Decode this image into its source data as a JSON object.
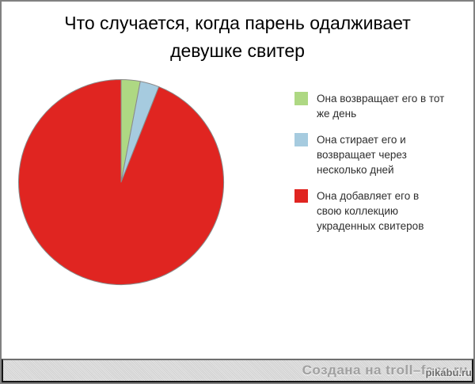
{
  "header": {
    "title_display": "Что случается, когда парень одалживает\nдевушке свитер"
  },
  "chart_data": {
    "type": "pie",
    "title": "Что случается, когда парень одалживает девушке свитер",
    "start_angle_deg": 0,
    "direction": "clockwise-from-top",
    "legend_position": "right",
    "outline_color": "#8a8a8a",
    "slices": [
      {
        "label": "Она возвращает его в тот же день",
        "label_display": "Она возвращает его в тот\nже день",
        "value": 3,
        "color": "#aed883"
      },
      {
        "label": "Она стирает его и возвращает через несколько дней",
        "label_display": "Она стирает его и\nвозвращает через\nнесколько дней",
        "value": 3,
        "color": "#a6cbdf"
      },
      {
        "label": "Она добавляет его в свою коллекцию украденных свитеров",
        "label_display": "Она добавляет его в\nсвою коллекцию\nукраденных свитеров",
        "value": 94,
        "color": "#e02521"
      }
    ]
  },
  "footer": {
    "credit": "Создана на troll–face.ru",
    "watermark": "pikabu.ru"
  },
  "colors": {
    "background": "#ffffff",
    "frame_border": "#818181",
    "footer_bg": "#d8d8d8",
    "title_text": "#000000",
    "legend_text": "#2e2e2e",
    "credit_text": "#a0a0a0"
  }
}
